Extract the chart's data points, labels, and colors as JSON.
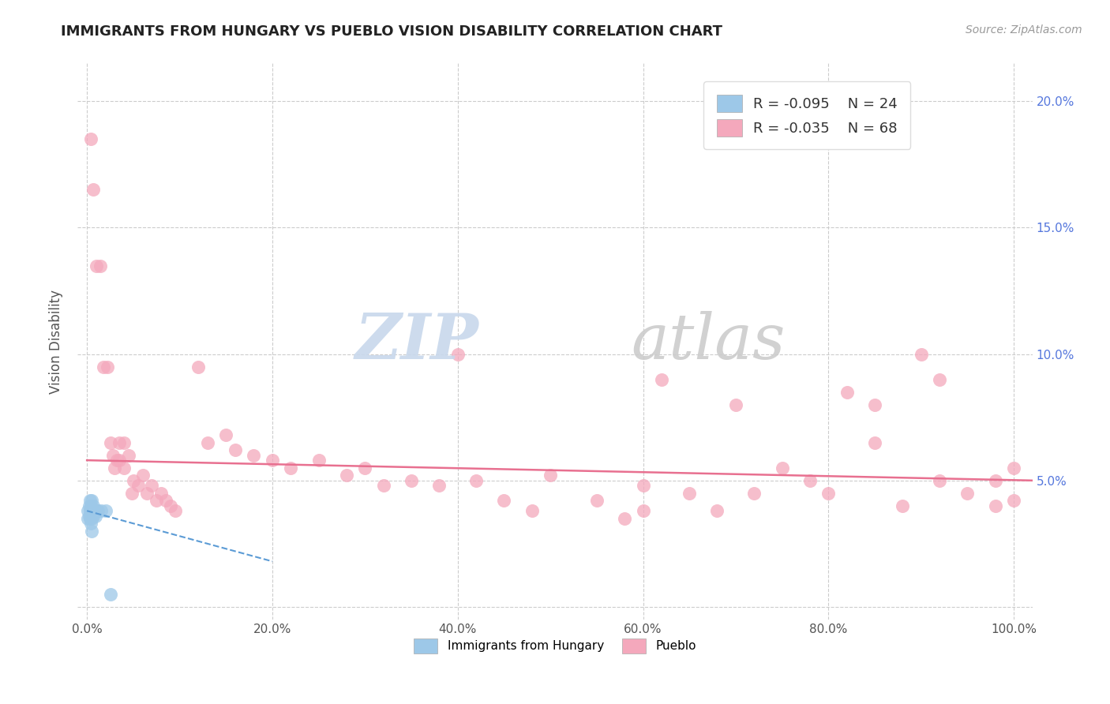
{
  "title": "IMMIGRANTS FROM HUNGARY VS PUEBLO VISION DISABILITY CORRELATION CHART",
  "source_text": "Source: ZipAtlas.com",
  "ylabel": "Vision Disability",
  "xlim": [
    -0.01,
    1.02
  ],
  "ylim": [
    -0.005,
    0.215
  ],
  "xtick_vals": [
    0.0,
    0.2,
    0.4,
    0.6,
    0.8,
    1.0
  ],
  "xtick_labels": [
    "0.0%",
    "20.0%",
    "40.0%",
    "60.0%",
    "80.0%",
    "100.0%"
  ],
  "ytick_vals": [
    0.0,
    0.05,
    0.1,
    0.15,
    0.2
  ],
  "ytick_labels_right": [
    "",
    "5.0%",
    "10.0%",
    "15.0%",
    "20.0%"
  ],
  "legend_r1": "R = -0.095",
  "legend_n1": "N = 24",
  "legend_r2": "R = -0.035",
  "legend_n2": "N = 68",
  "blue_color": "#9DC8E8",
  "pink_color": "#F4A8BC",
  "blue_line_color": "#5B9BD5",
  "pink_line_color": "#E87090",
  "grid_color": "#CCCCCC",
  "blue_scatter": [
    [
      0.001,
      0.038
    ],
    [
      0.001,
      0.035
    ],
    [
      0.002,
      0.04
    ],
    [
      0.002,
      0.036
    ],
    [
      0.003,
      0.042
    ],
    [
      0.003,
      0.038
    ],
    [
      0.003,
      0.035
    ],
    [
      0.004,
      0.04
    ],
    [
      0.004,
      0.037
    ],
    [
      0.004,
      0.033
    ],
    [
      0.005,
      0.042
    ],
    [
      0.005,
      0.038
    ],
    [
      0.005,
      0.035
    ],
    [
      0.005,
      0.03
    ],
    [
      0.006,
      0.038
    ],
    [
      0.007,
      0.04
    ],
    [
      0.007,
      0.036
    ],
    [
      0.008,
      0.038
    ],
    [
      0.009,
      0.036
    ],
    [
      0.01,
      0.038
    ],
    [
      0.012,
      0.038
    ],
    [
      0.015,
      0.038
    ],
    [
      0.02,
      0.038
    ],
    [
      0.025,
      0.005
    ]
  ],
  "pink_scatter": [
    [
      0.004,
      0.185
    ],
    [
      0.007,
      0.165
    ],
    [
      0.01,
      0.135
    ],
    [
      0.014,
      0.135
    ],
    [
      0.018,
      0.095
    ],
    [
      0.022,
      0.095
    ],
    [
      0.025,
      0.065
    ],
    [
      0.028,
      0.06
    ],
    [
      0.03,
      0.055
    ],
    [
      0.032,
      0.058
    ],
    [
      0.035,
      0.065
    ],
    [
      0.035,
      0.058
    ],
    [
      0.04,
      0.065
    ],
    [
      0.04,
      0.055
    ],
    [
      0.045,
      0.06
    ],
    [
      0.048,
      0.045
    ],
    [
      0.05,
      0.05
    ],
    [
      0.055,
      0.048
    ],
    [
      0.06,
      0.052
    ],
    [
      0.065,
      0.045
    ],
    [
      0.07,
      0.048
    ],
    [
      0.075,
      0.042
    ],
    [
      0.08,
      0.045
    ],
    [
      0.085,
      0.042
    ],
    [
      0.09,
      0.04
    ],
    [
      0.095,
      0.038
    ],
    [
      0.12,
      0.095
    ],
    [
      0.13,
      0.065
    ],
    [
      0.15,
      0.068
    ],
    [
      0.16,
      0.062
    ],
    [
      0.18,
      0.06
    ],
    [
      0.2,
      0.058
    ],
    [
      0.22,
      0.055
    ],
    [
      0.25,
      0.058
    ],
    [
      0.28,
      0.052
    ],
    [
      0.3,
      0.055
    ],
    [
      0.32,
      0.048
    ],
    [
      0.35,
      0.05
    ],
    [
      0.38,
      0.048
    ],
    [
      0.4,
      0.1
    ],
    [
      0.42,
      0.05
    ],
    [
      0.45,
      0.042
    ],
    [
      0.48,
      0.038
    ],
    [
      0.5,
      0.052
    ],
    [
      0.55,
      0.042
    ],
    [
      0.58,
      0.035
    ],
    [
      0.6,
      0.048
    ],
    [
      0.6,
      0.038
    ],
    [
      0.62,
      0.09
    ],
    [
      0.65,
      0.045
    ],
    [
      0.68,
      0.038
    ],
    [
      0.7,
      0.08
    ],
    [
      0.72,
      0.045
    ],
    [
      0.75,
      0.055
    ],
    [
      0.78,
      0.05
    ],
    [
      0.8,
      0.045
    ],
    [
      0.82,
      0.085
    ],
    [
      0.85,
      0.08
    ],
    [
      0.85,
      0.065
    ],
    [
      0.88,
      0.04
    ],
    [
      0.9,
      0.1
    ],
    [
      0.92,
      0.09
    ],
    [
      0.92,
      0.05
    ],
    [
      0.95,
      0.045
    ],
    [
      0.98,
      0.05
    ],
    [
      0.98,
      0.04
    ],
    [
      1.0,
      0.055
    ],
    [
      1.0,
      0.042
    ]
  ],
  "blue_line_x": [
    0.0,
    0.2
  ],
  "blue_line_y": [
    0.038,
    0.018
  ],
  "pink_line_x": [
    0.0,
    1.02
  ],
  "pink_line_y": [
    0.058,
    0.05
  ]
}
